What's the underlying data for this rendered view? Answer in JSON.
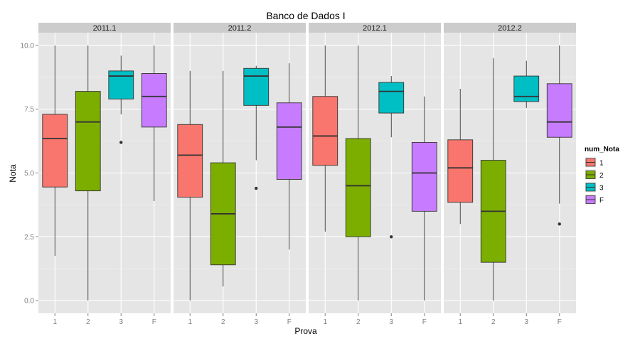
{
  "chart_data": {
    "type": "boxplot",
    "title": "Banco de Dados I",
    "xlabel": "Prova",
    "ylabel": "Nota",
    "ylim": [
      -0.5,
      10.5
    ],
    "yticks": [
      "0.0",
      "2.5",
      "5.0",
      "7.5",
      "10.0"
    ],
    "ytick_values": [
      0,
      2.5,
      5,
      7.5,
      10
    ],
    "categories": [
      "1",
      "2",
      "3",
      "F"
    ],
    "grid": true,
    "legend": {
      "title": "num_Nota",
      "position": "right",
      "entries": [
        {
          "label": "1",
          "color": "#F8766D"
        },
        {
          "label": "2",
          "color": "#7CAE00"
        },
        {
          "label": "3",
          "color": "#00BFC4"
        },
        {
          "label": "F",
          "color": "#C77CFF"
        }
      ]
    },
    "facets": [
      {
        "label": "2011.1",
        "boxes": [
          {
            "cat": "1",
            "min": 1.75,
            "q1": 4.45,
            "median": 6.35,
            "q3": 7.3,
            "max": 10.0,
            "outliers": []
          },
          {
            "cat": "2",
            "min": 0.0,
            "q1": 4.3,
            "median": 7.0,
            "q3": 8.2,
            "max": 10.0,
            "outliers": []
          },
          {
            "cat": "3",
            "min": 7.3,
            "q1": 7.9,
            "median": 8.8,
            "q3": 9.0,
            "max": 9.6,
            "outliers": [
              6.2
            ]
          },
          {
            "cat": "F",
            "min": 3.9,
            "q1": 6.8,
            "median": 8.0,
            "q3": 8.9,
            "max": 10.0,
            "outliers": []
          }
        ]
      },
      {
        "label": "2011.2",
        "boxes": [
          {
            "cat": "1",
            "min": 0.0,
            "q1": 4.05,
            "median": 5.7,
            "q3": 6.9,
            "max": 9.0,
            "outliers": []
          },
          {
            "cat": "2",
            "min": 0.55,
            "q1": 1.4,
            "median": 3.4,
            "q3": 5.4,
            "max": 9.0,
            "outliers": []
          },
          {
            "cat": "3",
            "min": 5.5,
            "q1": 7.65,
            "median": 8.8,
            "q3": 9.1,
            "max": 9.2,
            "outliers": [
              4.4
            ]
          },
          {
            "cat": "F",
            "min": 2.0,
            "q1": 4.75,
            "median": 6.8,
            "q3": 7.75,
            "max": 9.3,
            "outliers": []
          }
        ]
      },
      {
        "label": "2012.1",
        "boxes": [
          {
            "cat": "1",
            "min": 2.7,
            "q1": 5.3,
            "median": 6.45,
            "q3": 8.0,
            "max": 10.0,
            "outliers": []
          },
          {
            "cat": "2",
            "min": 0.0,
            "q1": 2.5,
            "median": 4.5,
            "q3": 6.35,
            "max": 10.0,
            "outliers": []
          },
          {
            "cat": "3",
            "min": 6.4,
            "q1": 7.35,
            "median": 8.2,
            "q3": 8.55,
            "max": 8.8,
            "outliers": [
              2.5
            ]
          },
          {
            "cat": "F",
            "min": 0.0,
            "q1": 3.5,
            "median": 5.0,
            "q3": 6.2,
            "max": 8.0,
            "outliers": []
          }
        ]
      },
      {
        "label": "2012.2",
        "boxes": [
          {
            "cat": "1",
            "min": 3.0,
            "q1": 3.85,
            "median": 5.2,
            "q3": 6.3,
            "max": 8.3,
            "outliers": []
          },
          {
            "cat": "2",
            "min": 0.0,
            "q1": 1.5,
            "median": 3.5,
            "q3": 5.5,
            "max": 9.5,
            "outliers": []
          },
          {
            "cat": "3",
            "min": 7.55,
            "q1": 7.8,
            "median": 8.0,
            "q3": 8.8,
            "max": 9.4,
            "outliers": []
          },
          {
            "cat": "F",
            "min": 3.8,
            "q1": 6.4,
            "median": 7.0,
            "q3": 8.5,
            "max": 10.0,
            "outliers": [
              3.0
            ]
          }
        ]
      }
    ]
  }
}
